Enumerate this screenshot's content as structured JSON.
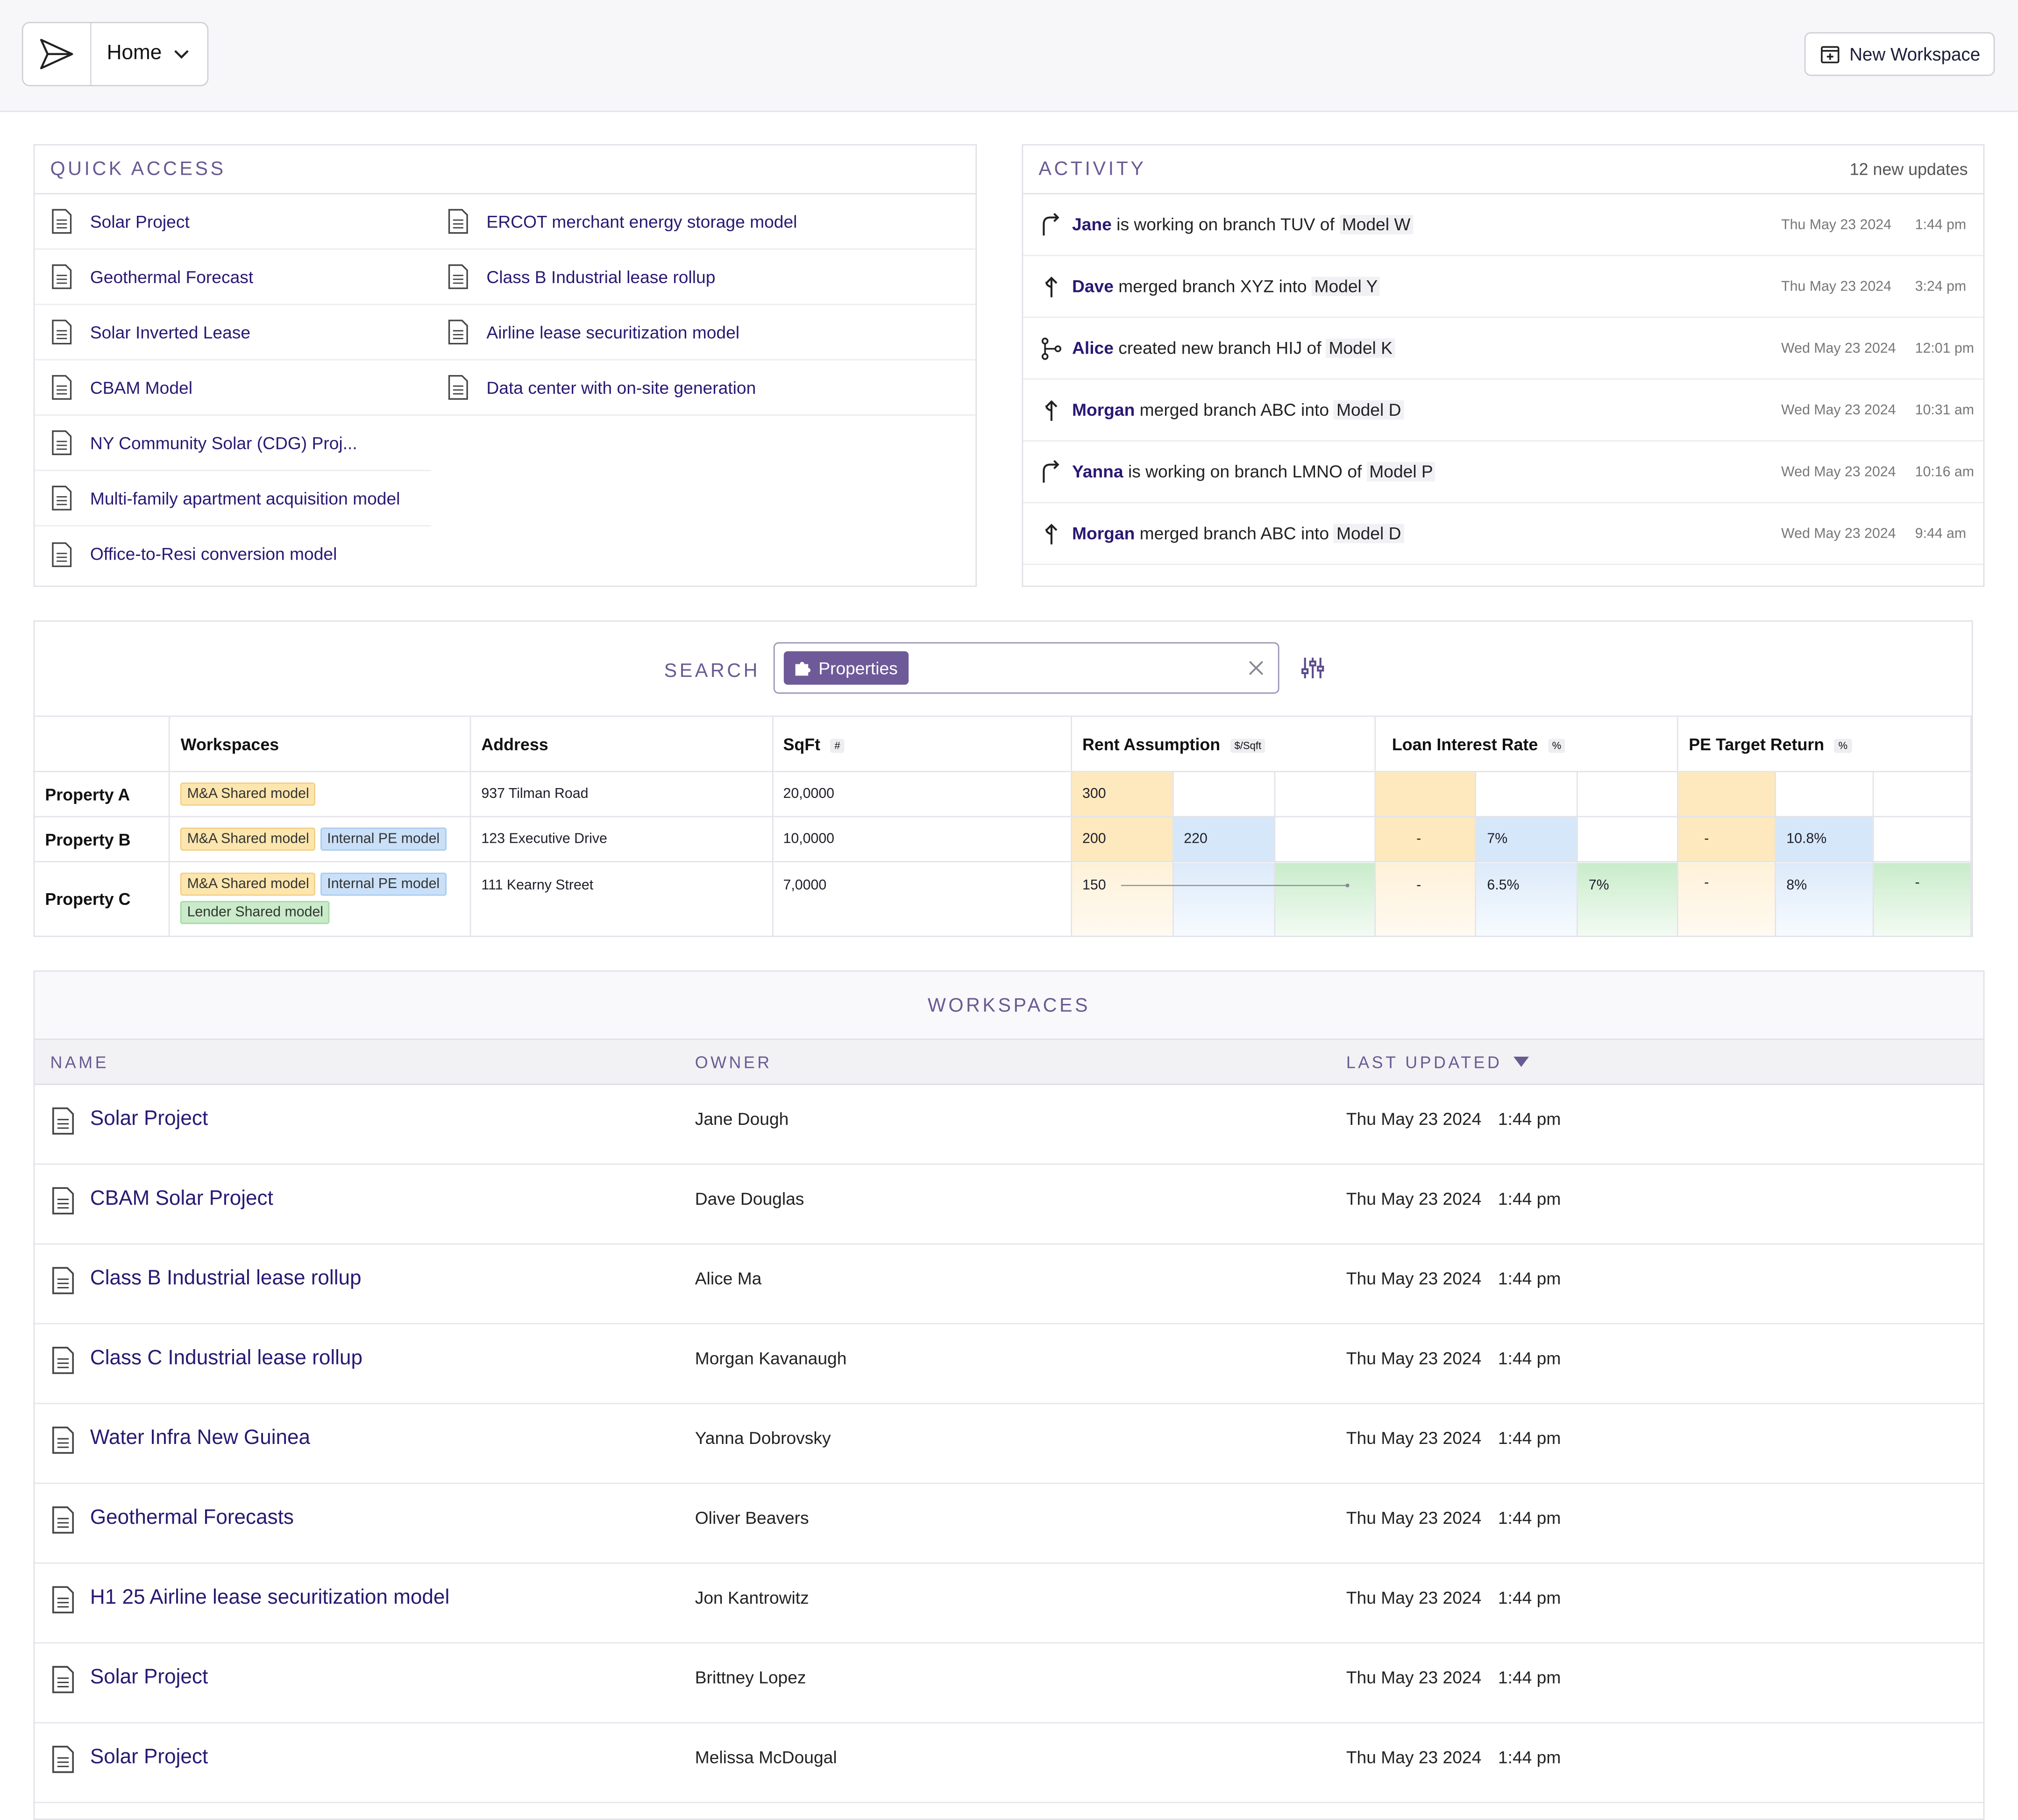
{
  "header": {
    "home_label": "Home",
    "new_workspace_label": "New Workspace"
  },
  "quick_access": {
    "title": "QUICK ACCESS",
    "left": [
      "Solar Project",
      "Geothermal Forecast",
      "Solar Inverted Lease",
      "CBAM Model",
      "NY Community Solar (CDG) Proj...",
      "Multi-family apartment acquisition model",
      "Office-to-Resi conversion model"
    ],
    "right": [
      "ERCOT merchant energy storage model",
      "Class B Industrial lease rollup",
      "Airline lease securitization model",
      "Data center with on-site generation"
    ]
  },
  "activity": {
    "title": "ACTIVITY",
    "updates": "12 new updates",
    "items": [
      {
        "who": "Jane",
        "pre": "is working on branch",
        "branch": "TUV",
        "mid": "of",
        "model": "Model W",
        "date": "Thu May 23 2024",
        "time": "1:44 pm",
        "icon": "branch-working-icon"
      },
      {
        "who": "Dave",
        "pre": "merged branch",
        "branch": "XYZ",
        "mid": "into",
        "model": "Model Y",
        "date": "Thu May 23 2024",
        "time": "3:24 pm",
        "icon": "merge-icon"
      },
      {
        "who": "Alice",
        "pre": "created new branch",
        "branch": "HIJ",
        "mid": "of",
        "model": "Model K",
        "date": "Wed May 23 2024",
        "time": "12:01 pm",
        "icon": "git-branch-icon"
      },
      {
        "who": "Morgan",
        "pre": "merged branch",
        "branch": "ABC",
        "mid": "into",
        "model": "Model D",
        "date": "Wed May 23 2024",
        "time": "10:31 am",
        "icon": "merge-icon"
      },
      {
        "who": "Yanna",
        "pre": "is working on",
        "branch": "branch LMNO",
        "mid": "of",
        "model": "Model P",
        "date": "Wed May 23 2024",
        "time": "10:16 am",
        "icon": "branch-working-icon"
      },
      {
        "who": "Morgan",
        "pre": "merged branch",
        "branch": "ABC",
        "mid": "into",
        "model": "Model D",
        "date": "Wed May 23 2024",
        "time": "9:44 am",
        "icon": "merge-icon"
      }
    ]
  },
  "search": {
    "label": "SEARCH",
    "chip": "Properties",
    "columns": {
      "workspaces": "Workspaces",
      "address": "Address",
      "sqft": "SqFt",
      "sqft_unit": "#",
      "rent": "Rent Assumption",
      "rent_unit": "$/Sqft",
      "loan": "Loan Interest Rate",
      "loan_unit": "%",
      "pe": "PE Target Return",
      "pe_unit": "%"
    },
    "rows": [
      {
        "name": "Property A",
        "tags": [
          "M&A Shared model"
        ],
        "address": "937 Tilman Road",
        "sqft": "20,0000",
        "rent": [
          "300",
          "",
          ""
        ],
        "loan": [
          "",
          "",
          ""
        ],
        "pe": [
          "",
          "",
          ""
        ]
      },
      {
        "name": "Property B",
        "tags": [
          "M&A Shared model",
          "Internal PE model"
        ],
        "address": "123 Executive Drive",
        "sqft": "10,0000",
        "rent": [
          "200",
          "220",
          ""
        ],
        "loan": [
          "-",
          "7%",
          ""
        ],
        "pe": [
          "-",
          "10.8%",
          ""
        ]
      },
      {
        "name": "Property C",
        "tags": [
          "M&A Shared model",
          "Internal PE model",
          "Lender Shared model"
        ],
        "address": "111 Kearny Street",
        "sqft": "7,0000",
        "rent": [
          "150",
          "",
          ""
        ],
        "loan": [
          "-",
          "6.5%",
          "7%"
        ],
        "pe": [
          "-",
          "8%",
          "-"
        ]
      }
    ]
  },
  "workspaces": {
    "title": "WORKSPACES",
    "col_name": "NAME",
    "col_owner": "OWNER",
    "col_updated": "LAST UPDATED",
    "rows": [
      {
        "name": "Solar Project",
        "owner": "Jane Dough",
        "date": "Thu May 23 2024",
        "time": "1:44 pm"
      },
      {
        "name": "CBAM Solar Project",
        "owner": "Dave Douglas",
        "date": "Thu May 23 2024",
        "time": "1:44 pm"
      },
      {
        "name": "Class B Industrial lease rollup",
        "owner": "Alice Ma",
        "date": "Thu May 23 2024",
        "time": "1:44 pm"
      },
      {
        "name": "Class C Industrial lease rollup",
        "owner": "Morgan Kavanaugh",
        "date": "Thu May 23 2024",
        "time": "1:44 pm"
      },
      {
        "name": "Water Infra New Guinea",
        "owner": "Yanna Dobrovsky",
        "date": "Thu May 23 2024",
        "time": "1:44 pm"
      },
      {
        "name": "Geothermal Forecasts",
        "owner": "Oliver Beavers",
        "date": "Thu May 23 2024",
        "time": "1:44 pm"
      },
      {
        "name": "H1 25 Airline lease securitization model",
        "owner": "Jon Kantrowitz",
        "date": "Thu May 23 2024",
        "time": "1:44 pm"
      },
      {
        "name": "Solar Project",
        "owner": "Brittney Lopez",
        "date": "Thu May 23 2024",
        "time": "1:44 pm"
      },
      {
        "name": "Solar Project",
        "owner": "Melissa McDougal",
        "date": "Thu May 23 2024",
        "time": "1:44 pm"
      }
    ]
  }
}
